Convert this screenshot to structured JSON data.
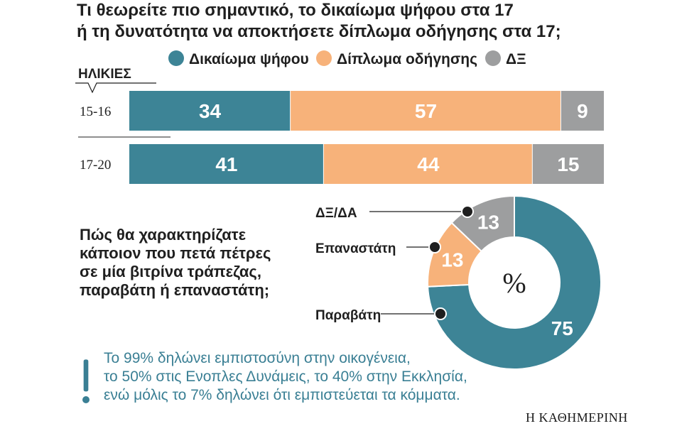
{
  "title_lines": [
    "Τι θεωρείτε πιο σημαντικό, το δικαίωμα ψήφου στα 17",
    "ή τη δυνατότητα να αποκτήσετε δίπλωμα οδήγησης στα 17;"
  ],
  "colors": {
    "vote": "#3d8496",
    "license": "#f7b27a",
    "dk": "#9d9e9f",
    "text": "#1f1f1f",
    "note": "#3a7f94"
  },
  "chart_data": [
    {
      "type": "bar",
      "orientation": "horizontal-stacked",
      "category_header": "ΗΛΙΚΙΕΣ",
      "categories": [
        "15-16",
        "17-20"
      ],
      "series": [
        {
          "name": "Δικαίωμα ψήφου",
          "values": [
            34,
            41
          ],
          "color": "#3d8496"
        },
        {
          "name": "Δίπλωμα οδήγησης",
          "values": [
            57,
            44
          ],
          "color": "#f7b27a"
        },
        {
          "name": "ΔΞ",
          "values": [
            9,
            15
          ],
          "color": "#9d9e9f"
        }
      ],
      "xlim": [
        0,
        100
      ],
      "legend": "top",
      "grid": false
    },
    {
      "type": "pie",
      "style": "donut",
      "title_lines": [
        "Πώς θα χαρακτηρίζατε",
        "κάποιον που πετά πέτρες",
        "σε μία βιτρίνα τράπεζας,",
        "παραβάτη ή επαναστάτη;"
      ],
      "center_label": "%",
      "slices": [
        {
          "label": "Παραβάτη",
          "value": 75,
          "color": "#3d8496"
        },
        {
          "label": "Επαναστάτη",
          "value": 13,
          "color": "#f7b27a"
        },
        {
          "label": "ΔΞ/ΔΑ",
          "value": 13,
          "color": "#9d9e9f"
        }
      ]
    }
  ],
  "note_lines": [
    "Το 99% δηλώνει εμπιστοσύνη στην οικογένεια,",
    "το 50% στις Ενοπλες Δυνάμεις, το 40% στην Εκκλησία,",
    "ενώ μόλις το 7% δηλώνει ότι εμπιστεύεται τα κόμματα."
  ],
  "brand": "Η ΚΑΘΗΜΕΡΙΝΗ"
}
